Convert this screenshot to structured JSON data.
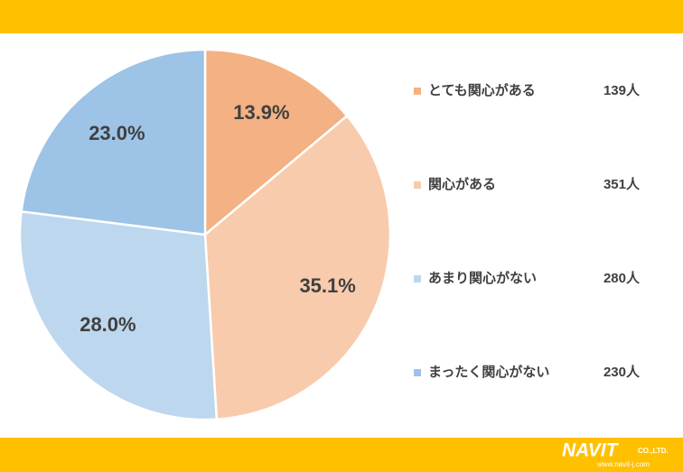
{
  "chart_data": {
    "type": "pie",
    "categories": [
      "とても関心がある",
      "関心がある",
      "あまり関心がない",
      "まったく関心がない"
    ],
    "values": [
      13.9,
      35.1,
      28.0,
      23.0
    ],
    "value_labels": [
      "13.9%",
      "35.1%",
      "28.0%",
      "23.0%"
    ],
    "colors": [
      "#F4B183",
      "#F8CBAD",
      "#BDD7EE",
      "#9DC3E6"
    ],
    "legend_counts": [
      "139人",
      "351人",
      "280人",
      "230人"
    ],
    "legend": "right"
  },
  "logo": {
    "name": "NAVIT",
    "suffix": "CO.,LTD.",
    "url": "www.navit-j.com"
  }
}
